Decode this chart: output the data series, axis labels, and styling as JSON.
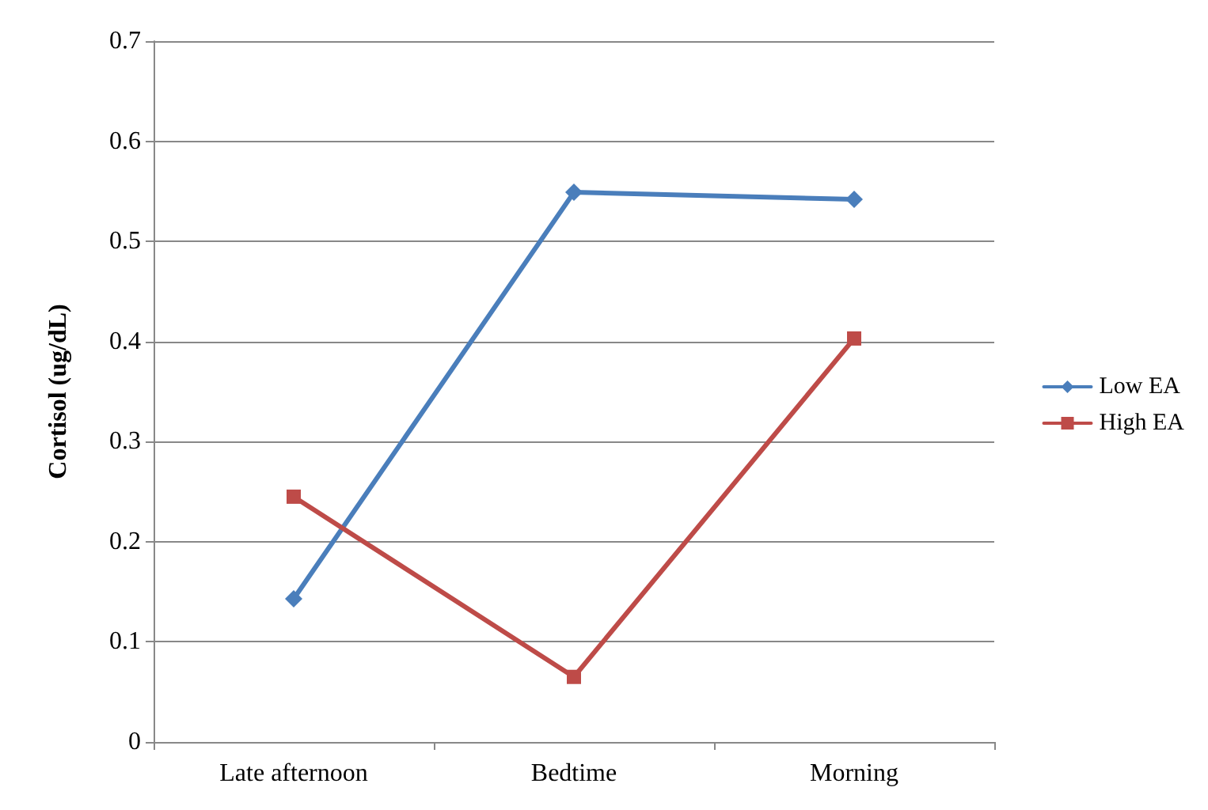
{
  "chart_data": {
    "type": "line",
    "ylabel": "Cortisol (ug/dL)",
    "categories": [
      "Late afternoon",
      "Bedtime",
      "Morning"
    ],
    "series": [
      {
        "name": "Low EA",
        "color": "#4a7ebb",
        "marker": "diamond",
        "values": [
          0.143,
          0.549,
          0.542
        ]
      },
      {
        "name": "High EA",
        "color": "#be4b48",
        "marker": "square",
        "values": [
          0.245,
          0.065,
          0.403
        ]
      }
    ],
    "ylim": [
      0,
      0.7
    ],
    "yticks": [
      0,
      0.1,
      0.2,
      0.3,
      0.4,
      0.5,
      0.6,
      0.7
    ],
    "grid": "y",
    "legend": "right",
    "line_style": "solid"
  }
}
